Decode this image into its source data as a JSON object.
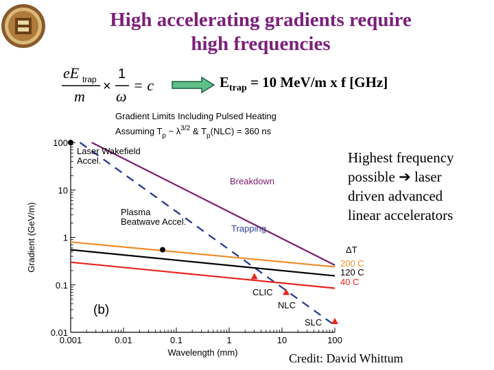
{
  "slide": {
    "title_line1": "High accelerating gradients require",
    "title_line2": "high frequencies",
    "equation": {
      "numerator_e": "eE",
      "numerator_sub": "trap",
      "denominator_m": "m",
      "times": "×",
      "one": "1",
      "omega": "ω",
      "equals": "= c"
    },
    "relation": {
      "prefix": "E",
      "sub": "trap",
      "rest": " = 10 MeV/m x f [GHz]"
    },
    "side_note_lines": [
      "Highest frequency",
      "possible",
      "laser",
      "driven advanced",
      "linear accelerators"
    ],
    "credit": "Credit: David Whittum",
    "colors": {
      "title": "#7b1f7a",
      "arrow_fill": "#5fbf8a",
      "arrow_stroke": "#1c5e3a"
    }
  },
  "chart_data": {
    "type": "line",
    "title_line1": "Gradient Limits Including Pulsed Heating",
    "title_line2_a": "Assuming T",
    "title_line2_b": " ~ λ",
    "title_line2_c": "3/2",
    "title_line2_d": " & T",
    "title_line2_e": "(NLC) = 360 ns",
    "title_sub_p": "p",
    "xlabel": "Wavelength (mm)",
    "ylabel": "Gradient (GeV/m)",
    "x_scale": "log",
    "y_scale": "log",
    "xlim": [
      0.001,
      100
    ],
    "ylim": [
      0.01,
      100
    ],
    "x_ticks": [
      {
        "v": 0.001,
        "label": "0.001"
      },
      {
        "v": 0.01,
        "label": "0.01"
      },
      {
        "v": 0.1,
        "label": "0.1"
      },
      {
        "v": 1,
        "label": "1"
      },
      {
        "v": 10,
        "label": "10"
      },
      {
        "v": 100,
        "label": "100"
      }
    ],
    "y_ticks": [
      {
        "v": 0.01,
        "label": "0.01"
      },
      {
        "v": 0.1,
        "label": "0.1"
      },
      {
        "v": 1,
        "label": "1"
      },
      {
        "v": 10,
        "label": "10"
      },
      {
        "v": 100,
        "label": "100"
      }
    ],
    "series": [
      {
        "key": "breakdown",
        "label": "Breakdown",
        "color": "#7a1a6c",
        "style": "solid",
        "x": [
          0.0025,
          100
        ],
        "y": [
          100,
          0.26
        ]
      },
      {
        "key": "trapping",
        "label": "Trapping",
        "color": "#2a3f8f",
        "style": "dashed",
        "x": [
          0.0015,
          100
        ],
        "y": [
          100,
          0.014
        ]
      },
      {
        "key": "t200",
        "label": "200 C",
        "color": "#f08c2a",
        "style": "solid",
        "x": [
          0.001,
          100
        ],
        "y": [
          0.8,
          0.24
        ]
      },
      {
        "key": "t120",
        "label": "120 C",
        "color": "#000000",
        "style": "solid",
        "x": [
          0.001,
          100
        ],
        "y": [
          0.55,
          0.155
        ]
      },
      {
        "key": "t40",
        "label": "40 C",
        "color": "#e8231f",
        "style": "solid",
        "x": [
          0.001,
          100
        ],
        "y": [
          0.3,
          0.085
        ]
      }
    ],
    "points": [
      {
        "key": "laser",
        "label_lines": [
          "Laser Wakefield",
          "Accel."
        ],
        "x": 0.001,
        "y": 100,
        "marker": "circle",
        "color": "#000000"
      },
      {
        "key": "plasma",
        "label_lines": [
          "Plasma",
          "Beatwave Accel."
        ],
        "x": 0.055,
        "y": 0.55,
        "marker": "circle",
        "color": "#000000"
      },
      {
        "key": "clic",
        "label_lines": [
          "CLIC"
        ],
        "x": 3.0,
        "y": 0.15,
        "marker": "triangle",
        "color": "#e8231f"
      },
      {
        "key": "nlc",
        "label_lines": [
          "NLC"
        ],
        "x": 12.0,
        "y": 0.07,
        "marker": "triangle",
        "color": "#e8231f"
      },
      {
        "key": "slc",
        "label_lines": [
          "SLC"
        ],
        "x": 100,
        "y": 0.017,
        "marker": "triangle",
        "color": "#e8231f"
      }
    ],
    "delta_t_label": "ΔT",
    "panel_label": "(b)",
    "legend": "right, stacked text labels beside line ends"
  }
}
